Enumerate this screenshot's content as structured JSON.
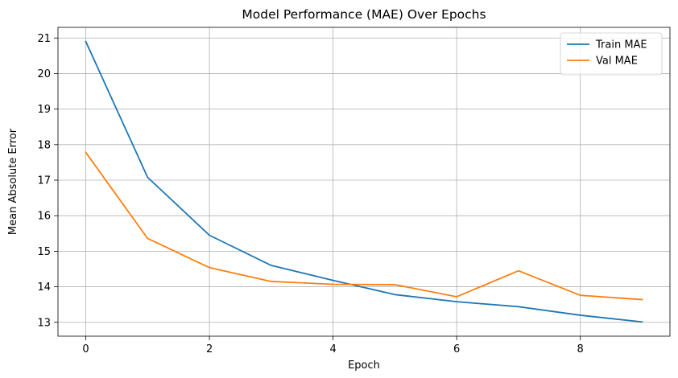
{
  "chart_data": {
    "type": "line",
    "title": "Model Performance (MAE) Over Epochs",
    "xlabel": "Epoch",
    "ylabel": "Mean Absolute Error",
    "x": [
      0,
      1,
      2,
      3,
      4,
      5,
      6,
      7,
      8,
      9
    ],
    "xlim": [
      -0.45,
      9.45
    ],
    "ylim": [
      12.61,
      21.3
    ],
    "xticks": [
      0,
      2,
      4,
      6,
      8
    ],
    "yticks": [
      13,
      14,
      15,
      16,
      17,
      18,
      19,
      20,
      21
    ],
    "grid": true,
    "legend_position": "top-right",
    "series": [
      {
        "name": "Train MAE",
        "color": "#1f77b4",
        "values": [
          20.9,
          17.08,
          15.45,
          14.6,
          14.18,
          13.78,
          13.58,
          13.44,
          13.2,
          13.01
        ]
      },
      {
        "name": "Val MAE",
        "color": "#ff7f0e",
        "values": [
          17.78,
          15.36,
          14.54,
          14.15,
          14.07,
          14.06,
          13.72,
          14.45,
          13.76,
          13.64
        ]
      }
    ]
  }
}
